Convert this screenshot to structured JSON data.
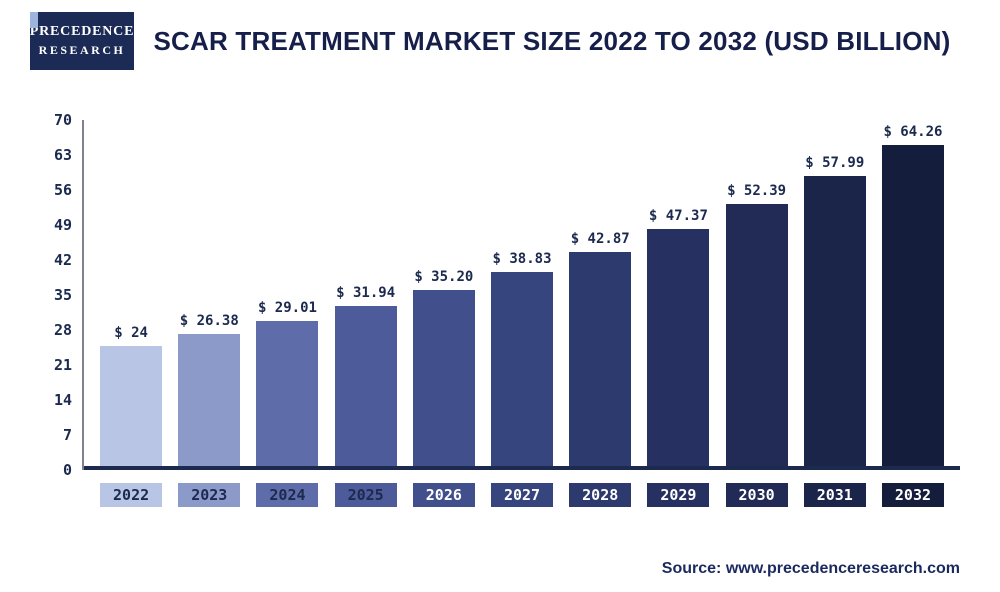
{
  "header": {
    "logo_line1": "PRECEDENCE",
    "logo_line2": "RESEARCH",
    "title": "SCAR TREATMENT MARKET SIZE 2022 TO 2032 (USD BILLION)"
  },
  "footer": {
    "source": "Source: www.precedenceresearch.com"
  },
  "chart_data": {
    "type": "bar",
    "title": "Scar Treatment Market Size 2022 to 2032 (USD Billion)",
    "xlabel": "",
    "ylabel": "",
    "ylim": [
      0,
      70
    ],
    "yticks": [
      0,
      7,
      14,
      21,
      28,
      35,
      42,
      49,
      56,
      63,
      70
    ],
    "grid": false,
    "legend": false,
    "categories": [
      "2022",
      "2023",
      "2024",
      "2025",
      "2026",
      "2027",
      "2028",
      "2029",
      "2030",
      "2031",
      "2032"
    ],
    "values": [
      24,
      26.38,
      29.01,
      31.94,
      35.2,
      38.83,
      42.87,
      47.37,
      52.39,
      57.99,
      64.26
    ],
    "value_labels": [
      "$ 24",
      "$ 26.38",
      "$ 29.01",
      "$ 31.94",
      "$ 35.20",
      "$ 38.83",
      "$ 42.87",
      "$ 47.37",
      "$ 52.39",
      "$ 57.99",
      "$ 64.26"
    ],
    "bar_colors": [
      "#b9c5e5",
      "#8c9aca",
      "#5e6ca9",
      "#4d5b9a",
      "#41508c",
      "#37457e",
      "#2d3a6e",
      "#273161",
      "#212b55",
      "#1b2449",
      "#151d3c"
    ],
    "year_label_text_colors": [
      "#1b2a4e",
      "#1b2a4e",
      "#1b2a4e",
      "#1b2a4e",
      "#ffffff",
      "#ffffff",
      "#ffffff",
      "#ffffff",
      "#ffffff",
      "#ffffff",
      "#ffffff"
    ],
    "axis_color": "#1b2a4e",
    "text_color": "#1b2a4e"
  }
}
